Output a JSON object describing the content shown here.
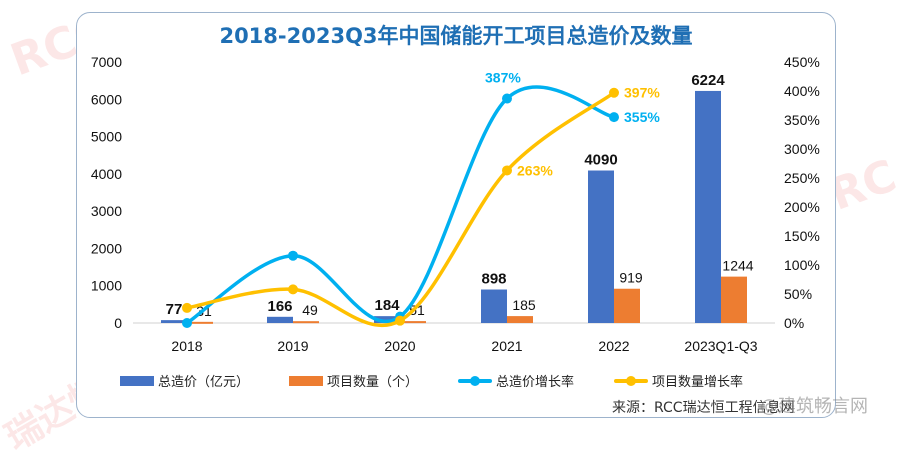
{
  "chart_data": {
    "type": "bar+line",
    "title": "2018-2023Q3年中国储能开工项目总造价及数量",
    "categories": [
      "2018",
      "2019",
      "2020",
      "2021",
      "2022",
      "2023Q1-Q3"
    ],
    "left_axis": {
      "ylim": [
        0,
        7000
      ],
      "ticks": [
        "0",
        "1000",
        "2000",
        "3000",
        "4000",
        "5000",
        "6000",
        "7000"
      ]
    },
    "right_axis": {
      "ylim": [
        0,
        450
      ],
      "ticks": [
        "0%",
        "50%",
        "100%",
        "150%",
        "200%",
        "250%",
        "300%",
        "350%",
        "400%",
        "450%"
      ]
    },
    "grid": false,
    "legend_position": "bottom",
    "series": [
      {
        "name": "总造价（亿元）",
        "type": "bar",
        "axis": "left",
        "color": "#4472c4",
        "values": [
          77,
          166,
          184,
          898,
          4090,
          6224
        ],
        "labels": [
          "77",
          "166",
          "184",
          "898",
          "4090",
          "6224"
        ]
      },
      {
        "name": "项目数量（个）",
        "type": "bar",
        "axis": "left",
        "color": "#ed7d31",
        "values": [
          31,
          49,
          51,
          185,
          919,
          1244
        ],
        "labels": [
          "31",
          "49",
          "51",
          "185",
          "919",
          "1244"
        ]
      },
      {
        "name": "总造价增长率",
        "type": "line",
        "axis": "right",
        "color": "#00b0f0",
        "values": [
          0,
          116,
          11,
          387,
          355,
          null
        ],
        "labels": [
          "",
          "",
          "",
          "387%",
          "355%",
          ""
        ]
      },
      {
        "name": "项目数量增长率",
        "type": "line",
        "axis": "right",
        "color": "#ffc000",
        "values": [
          26,
          58,
          4,
          263,
          397,
          null
        ],
        "labels": [
          "",
          "",
          "",
          "263%",
          "397%",
          ""
        ]
      }
    ]
  },
  "source": "来源：RCC瑞达恒工程信息网",
  "watermark": "RCC瑞达恒",
  "corner_watermark": "@建筑畅言网"
}
